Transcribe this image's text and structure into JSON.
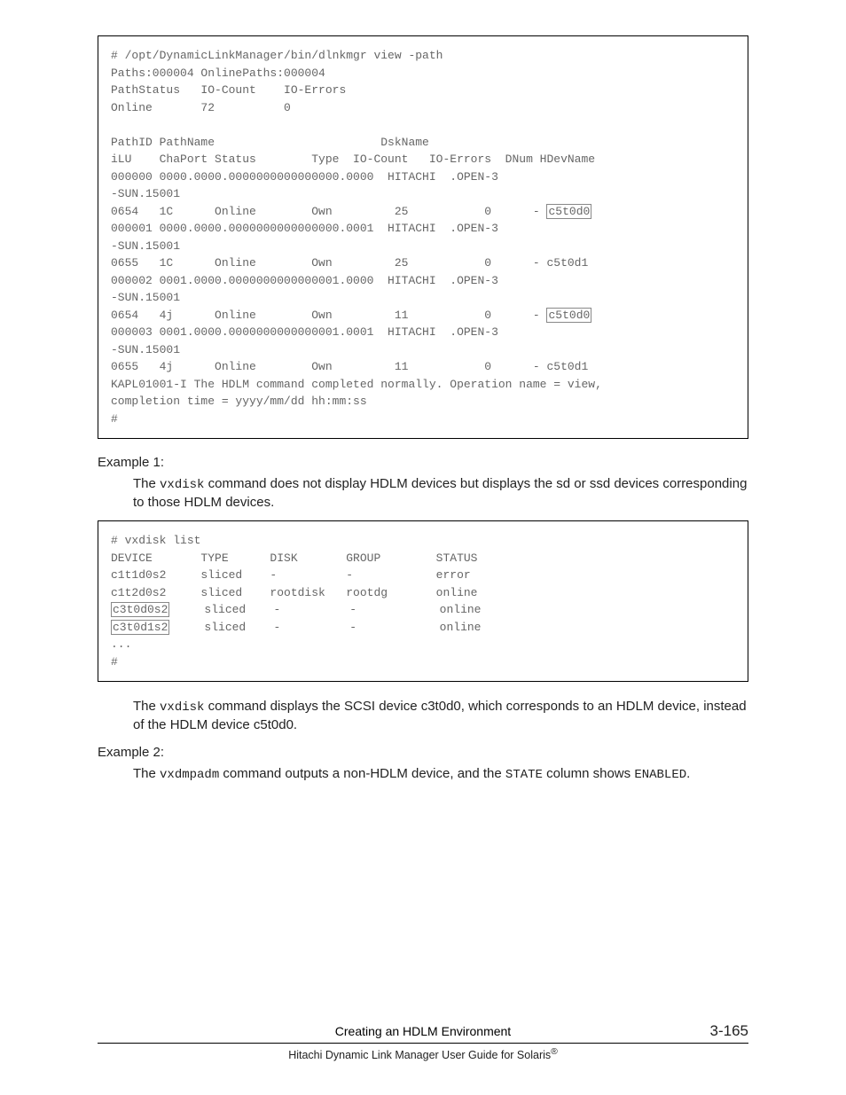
{
  "block1": {
    "lines": [
      {
        "t": "# /opt/DynamicLinkManager/bin/dlnkmgr view -path"
      },
      {
        "t": "Paths:000004 OnlinePaths:000004"
      },
      {
        "t": "PathStatus   IO-Count    IO-Errors"
      },
      {
        "t": "Online       72          0"
      },
      {
        "t": ""
      },
      {
        "t": "PathID PathName                        DskName"
      },
      {
        "t": "iLU    ChaPort Status        Type  IO-Count   IO-Errors  DNum HDevName"
      },
      {
        "t": "000000 0000.0000.0000000000000000.0000  HITACHI  .OPEN-3"
      },
      {
        "t": "-SUN.15001"
      },
      {
        "pre": "0654   1C      Online        Own         25           0      - ",
        "hl": "c5t0d0"
      },
      {
        "t": "000001 0000.0000.0000000000000000.0001  HITACHI  .OPEN-3"
      },
      {
        "t": "-SUN.15001"
      },
      {
        "t": "0655   1C      Online        Own         25           0      - c5t0d1"
      },
      {
        "t": "000002 0001.0000.0000000000000001.0000  HITACHI  .OPEN-3"
      },
      {
        "t": "-SUN.15001"
      },
      {
        "pre": "0654   4j      Online        Own         11           0      - ",
        "hl": "c5t0d0"
      },
      {
        "t": "000003 0001.0000.0000000000000001.0001  HITACHI  .OPEN-3"
      },
      {
        "t": "-SUN.15001"
      },
      {
        "t": "0655   4j      Online        Own         11           0      - c5t0d1"
      },
      {
        "t": "KAPL01001-I The HDLM command completed normally. Operation name = view,"
      },
      {
        "t": "completion time = yyyy/mm/dd hh:mm:ss"
      },
      {
        "t": "#"
      }
    ]
  },
  "example1": {
    "label": "Example 1:",
    "para_pre": "The ",
    "para_cmd": "vxdisk",
    "para_post": " command does not display HDLM devices but displays the sd or ssd devices corresponding to those HDLM devices."
  },
  "block2": {
    "lines": [
      {
        "t": "# vxdisk list"
      },
      {
        "t": "DEVICE       TYPE      DISK       GROUP        STATUS"
      },
      {
        "t": "c1t1d0s2     sliced    -          -            error"
      },
      {
        "t": "c1t2d0s2     sliced    rootdisk   rootdg       online"
      },
      {
        "hl": "c3t0d0s2",
        "post": "     sliced    -          -            online"
      },
      {
        "hl": "c3t0d1s2",
        "post": "     sliced    -          -            online"
      },
      {
        "t": "..."
      },
      {
        "t": "#"
      }
    ]
  },
  "post_block2": {
    "pre": "The ",
    "cmd": "vxdisk",
    "post": " command displays the SCSI device c3t0d0, which corresponds to an HDLM device, instead of the HDLM device c5t0d0."
  },
  "example2": {
    "label": "Example 2:",
    "p_pre": "The ",
    "p_cmd1": "vxdmpadm",
    "p_mid": " command outputs a non-HDLM device, and the ",
    "p_cmd2": "STATE",
    "p_mid2": " column shows ",
    "p_cmd3": "ENABLED",
    "p_end": "."
  },
  "footer": {
    "title": "Creating an HDLM Environment",
    "page": "3-165",
    "sub_pre": "Hitachi Dynamic Link Manager User Guide for Solaris",
    "reg": "®"
  }
}
